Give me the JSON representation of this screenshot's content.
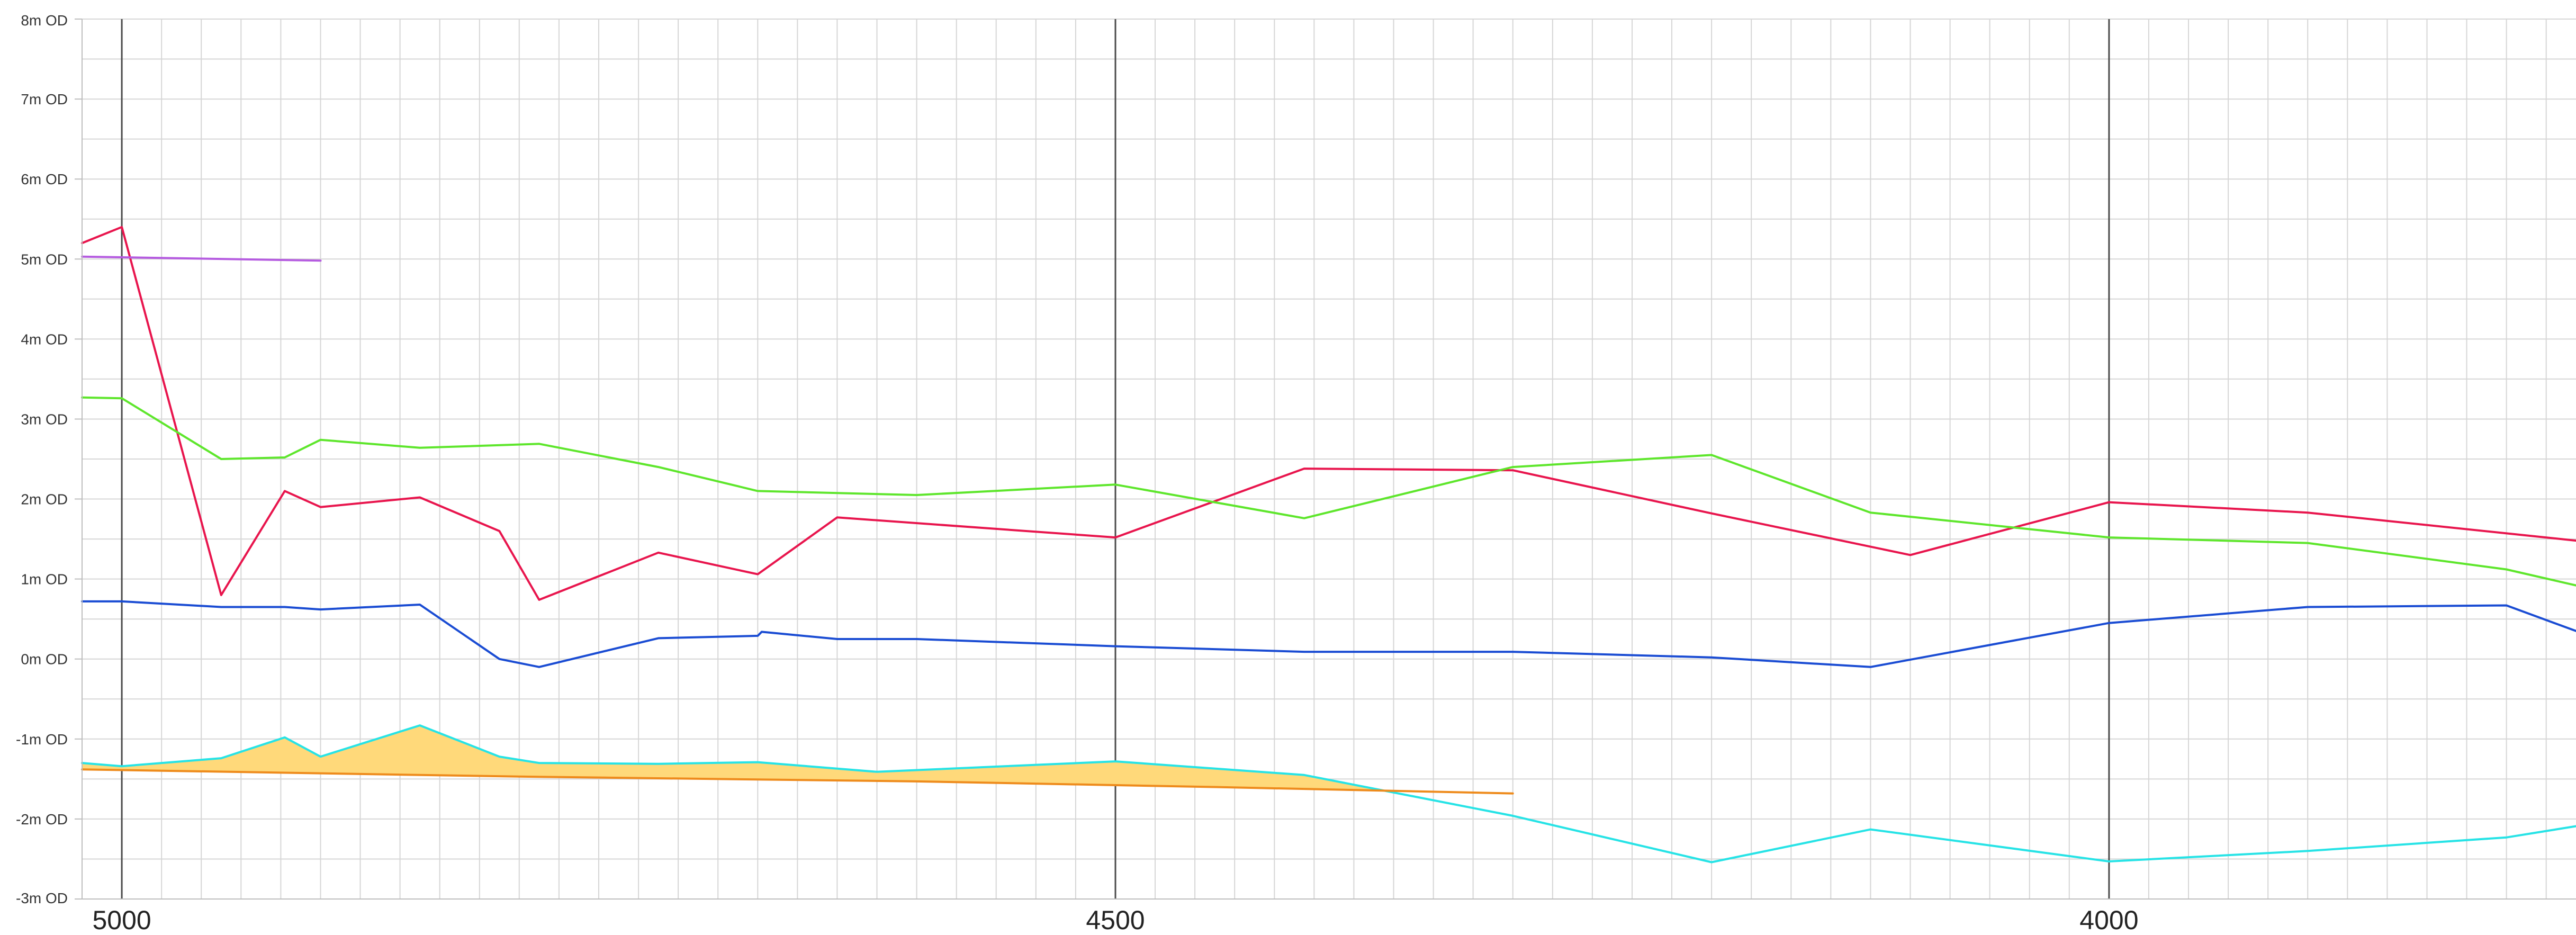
{
  "chart_data": {
    "type": "line",
    "title": "",
    "xlabel": "",
    "ylabel": "",
    "x_reversed": true,
    "xlim": [
      5020,
      3765
    ],
    "ylim": [
      -3,
      8
    ],
    "y_minor_step": 0.5,
    "x_minor_step": 20,
    "x_major_ticks": [
      5000,
      4500,
      4000
    ],
    "x_tick_labels": [
      "5000",
      "4500",
      "4000"
    ],
    "y_ticks": [
      8,
      7,
      6,
      5,
      4,
      3,
      2,
      1,
      0,
      -1,
      -2,
      -3
    ],
    "y_tick_labels": [
      "8m OD",
      "7m OD",
      "6m OD",
      "5m OD",
      "4m OD",
      "3m OD",
      "2m OD",
      "1m OD",
      "0m OD",
      "-1m OD",
      "-2m OD",
      "-3m OD"
    ],
    "grid": true,
    "fill_between": {
      "upper_series": 4,
      "lower_series": 5,
      "color": "#FFD97A"
    },
    "series": [
      {
        "color": "#E8154D",
        "x": [
          5020,
          5000,
          4950,
          4918,
          4900,
          4850,
          4810,
          4790,
          4730,
          4680,
          4640,
          4500,
          4405,
          4300,
          4200,
          4100,
          4000,
          3900,
          3765
        ],
        "y": [
          5.2,
          5.4,
          0.8,
          2.1,
          1.9,
          2.02,
          1.6,
          0.74,
          1.33,
          1.06,
          1.77,
          1.52,
          2.38,
          2.36,
          1.82,
          1.3,
          1.96,
          1.83,
          1.48
        ]
      },
      {
        "color": "#B55BE0",
        "x": [
          5020,
          4900
        ],
        "y": [
          5.03,
          4.98
        ]
      },
      {
        "color": "#5EE62C",
        "x": [
          5020,
          5000,
          4950,
          4918,
          4900,
          4850,
          4790,
          4730,
          4680,
          4600,
          4500,
          4405,
          4300,
          4200,
          4120,
          4000,
          3900,
          3800,
          3765
        ],
        "y": [
          3.27,
          3.26,
          2.5,
          2.52,
          2.74,
          2.64,
          2.69,
          2.4,
          2.1,
          2.05,
          2.18,
          1.76,
          2.4,
          2.55,
          1.83,
          1.52,
          1.45,
          1.12,
          0.92
        ]
      },
      {
        "color": "#1A4CD3",
        "x": [
          5020,
          5000,
          4950,
          4918,
          4900,
          4850,
          4810,
          4790,
          4730,
          4680,
          4678,
          4640,
          4600,
          4500,
          4405,
          4300,
          4200,
          4120,
          4000,
          3900,
          3800,
          3765
        ],
        "y": [
          0.72,
          0.72,
          0.65,
          0.65,
          0.62,
          0.68,
          0.0,
          -0.1,
          0.26,
          0.29,
          0.34,
          0.25,
          0.25,
          0.16,
          0.09,
          0.09,
          0.02,
          -0.1,
          0.45,
          0.65,
          0.67,
          0.35
        ]
      },
      {
        "color": "#27E3E6",
        "x": [
          5020,
          5000,
          4950,
          4918,
          4900,
          4850,
          4810,
          4790,
          4730,
          4680,
          4620,
          4500,
          4405,
          4300,
          4200,
          4120,
          4000,
          3900,
          3800,
          3765
        ],
        "y": [
          -1.3,
          -1.34,
          -1.24,
          -0.98,
          -1.22,
          -0.83,
          -1.22,
          -1.3,
          -1.31,
          -1.29,
          -1.41,
          -1.28,
          -1.45,
          -1.96,
          -2.54,
          -2.13,
          -2.53,
          -2.4,
          -2.23,
          -2.09
        ]
      },
      {
        "color": "#EE8B1C",
        "x": [
          5020,
          4800,
          4600,
          4450,
          4300
        ],
        "y": [
          -1.38,
          -1.47,
          -1.53,
          -1.6,
          -1.68
        ]
      }
    ]
  }
}
